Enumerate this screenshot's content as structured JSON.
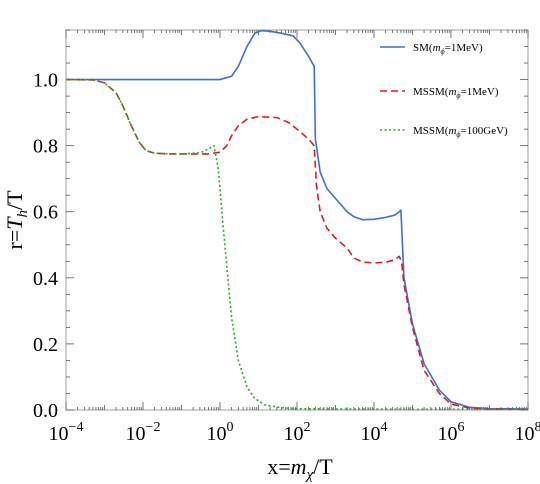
{
  "chart_data": {
    "type": "line",
    "xscale": "log",
    "xlim": [
      0.0001,
      100000000
    ],
    "ylim": [
      0,
      1.15
    ],
    "xlabel": "x=mχ/T",
    "ylabel": "r=Th/T",
    "x_ticks": [
      {
        "value": 0.0001,
        "base": "10",
        "exp": "−4"
      },
      {
        "value": 0.01,
        "base": "10",
        "exp": "−2"
      },
      {
        "value": 1,
        "base": "10",
        "exp": "0"
      },
      {
        "value": 100,
        "base": "10",
        "exp": "2"
      },
      {
        "value": 10000,
        "base": "10",
        "exp": "4"
      },
      {
        "value": 1000000,
        "base": "10",
        "exp": "6"
      },
      {
        "value": 100000000,
        "base": "10",
        "exp": "8"
      }
    ],
    "y_ticks": [
      {
        "value": 0.0,
        "label": "0.0"
      },
      {
        "value": 0.2,
        "label": "0.2"
      },
      {
        "value": 0.4,
        "label": "0.4"
      },
      {
        "value": 0.6,
        "label": "0.6"
      },
      {
        "value": 0.8,
        "label": "0.8"
      },
      {
        "value": 1.0,
        "label": "1.0"
      }
    ],
    "legend_position": "top-right",
    "grid": false,
    "series": [
      {
        "name": "SM(mϕ=1MeV)",
        "legend": {
          "pre": "SM(",
          "m": "m",
          "sub": "ϕ",
          "post": "=1MeV)"
        },
        "color": "#3f6fd1",
        "dash": "solid",
        "points": [
          [
            0.0001,
            1.0
          ],
          [
            0.001,
            1.0
          ],
          [
            0.01,
            1.0
          ],
          [
            0.1,
            1.0
          ],
          [
            0.5,
            1.0
          ],
          [
            1.0,
            1.0
          ],
          [
            2.0,
            1.01
          ],
          [
            3.0,
            1.04
          ],
          [
            5.0,
            1.1
          ],
          [
            8.0,
            1.14
          ],
          [
            12.0,
            1.148
          ],
          [
            20.0,
            1.146
          ],
          [
            40.0,
            1.14
          ],
          [
            80.0,
            1.132
          ],
          [
            120.0,
            1.11
          ],
          [
            200.0,
            1.07
          ],
          [
            280.0,
            1.04
          ],
          [
            300.0,
            0.82
          ],
          [
            400.0,
            0.72
          ],
          [
            600.0,
            0.67
          ],
          [
            1000.0,
            0.64
          ],
          [
            2000.0,
            0.6
          ],
          [
            3000.0,
            0.585
          ],
          [
            5000.0,
            0.576
          ],
          [
            10000.0,
            0.577
          ],
          [
            20000.0,
            0.583
          ],
          [
            35000.0,
            0.59
          ],
          [
            45000.0,
            0.6
          ],
          [
            50000.0,
            0.605
          ],
          [
            60000.0,
            0.4
          ],
          [
            100000.0,
            0.26
          ],
          [
            200000.0,
            0.14
          ],
          [
            500000.0,
            0.06
          ],
          [
            1000000.0,
            0.025
          ],
          [
            3000000.0,
            0.008
          ],
          [
            10000000.0,
            0.004
          ],
          [
            100000000.0,
            0.003
          ]
        ]
      },
      {
        "name": "MSSM(mϕ=1MeV)",
        "legend": {
          "pre": "MSSM(",
          "m": "m",
          "sub": "ϕ",
          "post": "=1MeV)"
        },
        "color": "#d91f1f",
        "dash": "7,4",
        "points": [
          [
            0.0001,
            1.0
          ],
          [
            0.0005,
            0.999
          ],
          [
            0.001,
            0.99
          ],
          [
            0.002,
            0.96
          ],
          [
            0.003,
            0.92
          ],
          [
            0.005,
            0.86
          ],
          [
            0.008,
            0.81
          ],
          [
            0.012,
            0.785
          ],
          [
            0.02,
            0.777
          ],
          [
            0.05,
            0.775
          ],
          [
            0.1,
            0.775
          ],
          [
            0.5,
            0.775
          ],
          [
            1.0,
            0.78
          ],
          [
            1.5,
            0.8
          ],
          [
            2.0,
            0.83
          ],
          [
            3.0,
            0.86
          ],
          [
            5.0,
            0.88
          ],
          [
            10.0,
            0.888
          ],
          [
            30.0,
            0.885
          ],
          [
            60.0,
            0.87
          ],
          [
            100.0,
            0.85
          ],
          [
            200.0,
            0.82
          ],
          [
            280.0,
            0.8
          ],
          [
            320.0,
            0.68
          ],
          [
            400.0,
            0.6
          ],
          [
            600.0,
            0.55
          ],
          [
            1000.0,
            0.52
          ],
          [
            2000.0,
            0.49
          ],
          [
            3000.0,
            0.46
          ],
          [
            5000.0,
            0.448
          ],
          [
            10000.0,
            0.445
          ],
          [
            20000.0,
            0.447
          ],
          [
            35000.0,
            0.455
          ],
          [
            45000.0,
            0.465
          ],
          [
            52000.0,
            0.45
          ],
          [
            60000.0,
            0.38
          ],
          [
            100000.0,
            0.25
          ],
          [
            200000.0,
            0.12
          ],
          [
            500000.0,
            0.05
          ],
          [
            1000000.0,
            0.018
          ],
          [
            3000000.0,
            0.006
          ],
          [
            10000000.0,
            0.003
          ],
          [
            100000000.0,
            0.002
          ]
        ]
      },
      {
        "name": "MSSM(mϕ=100GeV)",
        "legend": {
          "pre": "MSSM(",
          "m": "m",
          "sub": "ϕ",
          "post": "=100GeV)"
        },
        "color": "#2aa82a",
        "dash": "2,2.5",
        "points": [
          [
            0.0001,
            1.0
          ],
          [
            0.0005,
            0.999
          ],
          [
            0.001,
            0.99
          ],
          [
            0.002,
            0.96
          ],
          [
            0.003,
            0.92
          ],
          [
            0.005,
            0.86
          ],
          [
            0.008,
            0.81
          ],
          [
            0.012,
            0.785
          ],
          [
            0.02,
            0.777
          ],
          [
            0.05,
            0.775
          ],
          [
            0.1,
            0.775
          ],
          [
            0.3,
            0.778
          ],
          [
            0.5,
            0.79
          ],
          [
            0.7,
            0.8
          ],
          [
            0.9,
            0.73
          ],
          [
            1.2,
            0.56
          ],
          [
            1.6,
            0.4
          ],
          [
            2.0,
            0.28
          ],
          [
            3.0,
            0.15
          ],
          [
            5.0,
            0.07
          ],
          [
            8.0,
            0.035
          ],
          [
            15.0,
            0.015
          ],
          [
            40.0,
            0.007
          ],
          [
            100.0,
            0.004
          ],
          [
            1000.0,
            0.003
          ],
          [
            100000.0,
            0.002
          ],
          [
            100000000.0,
            0.002
          ]
        ]
      }
    ]
  }
}
